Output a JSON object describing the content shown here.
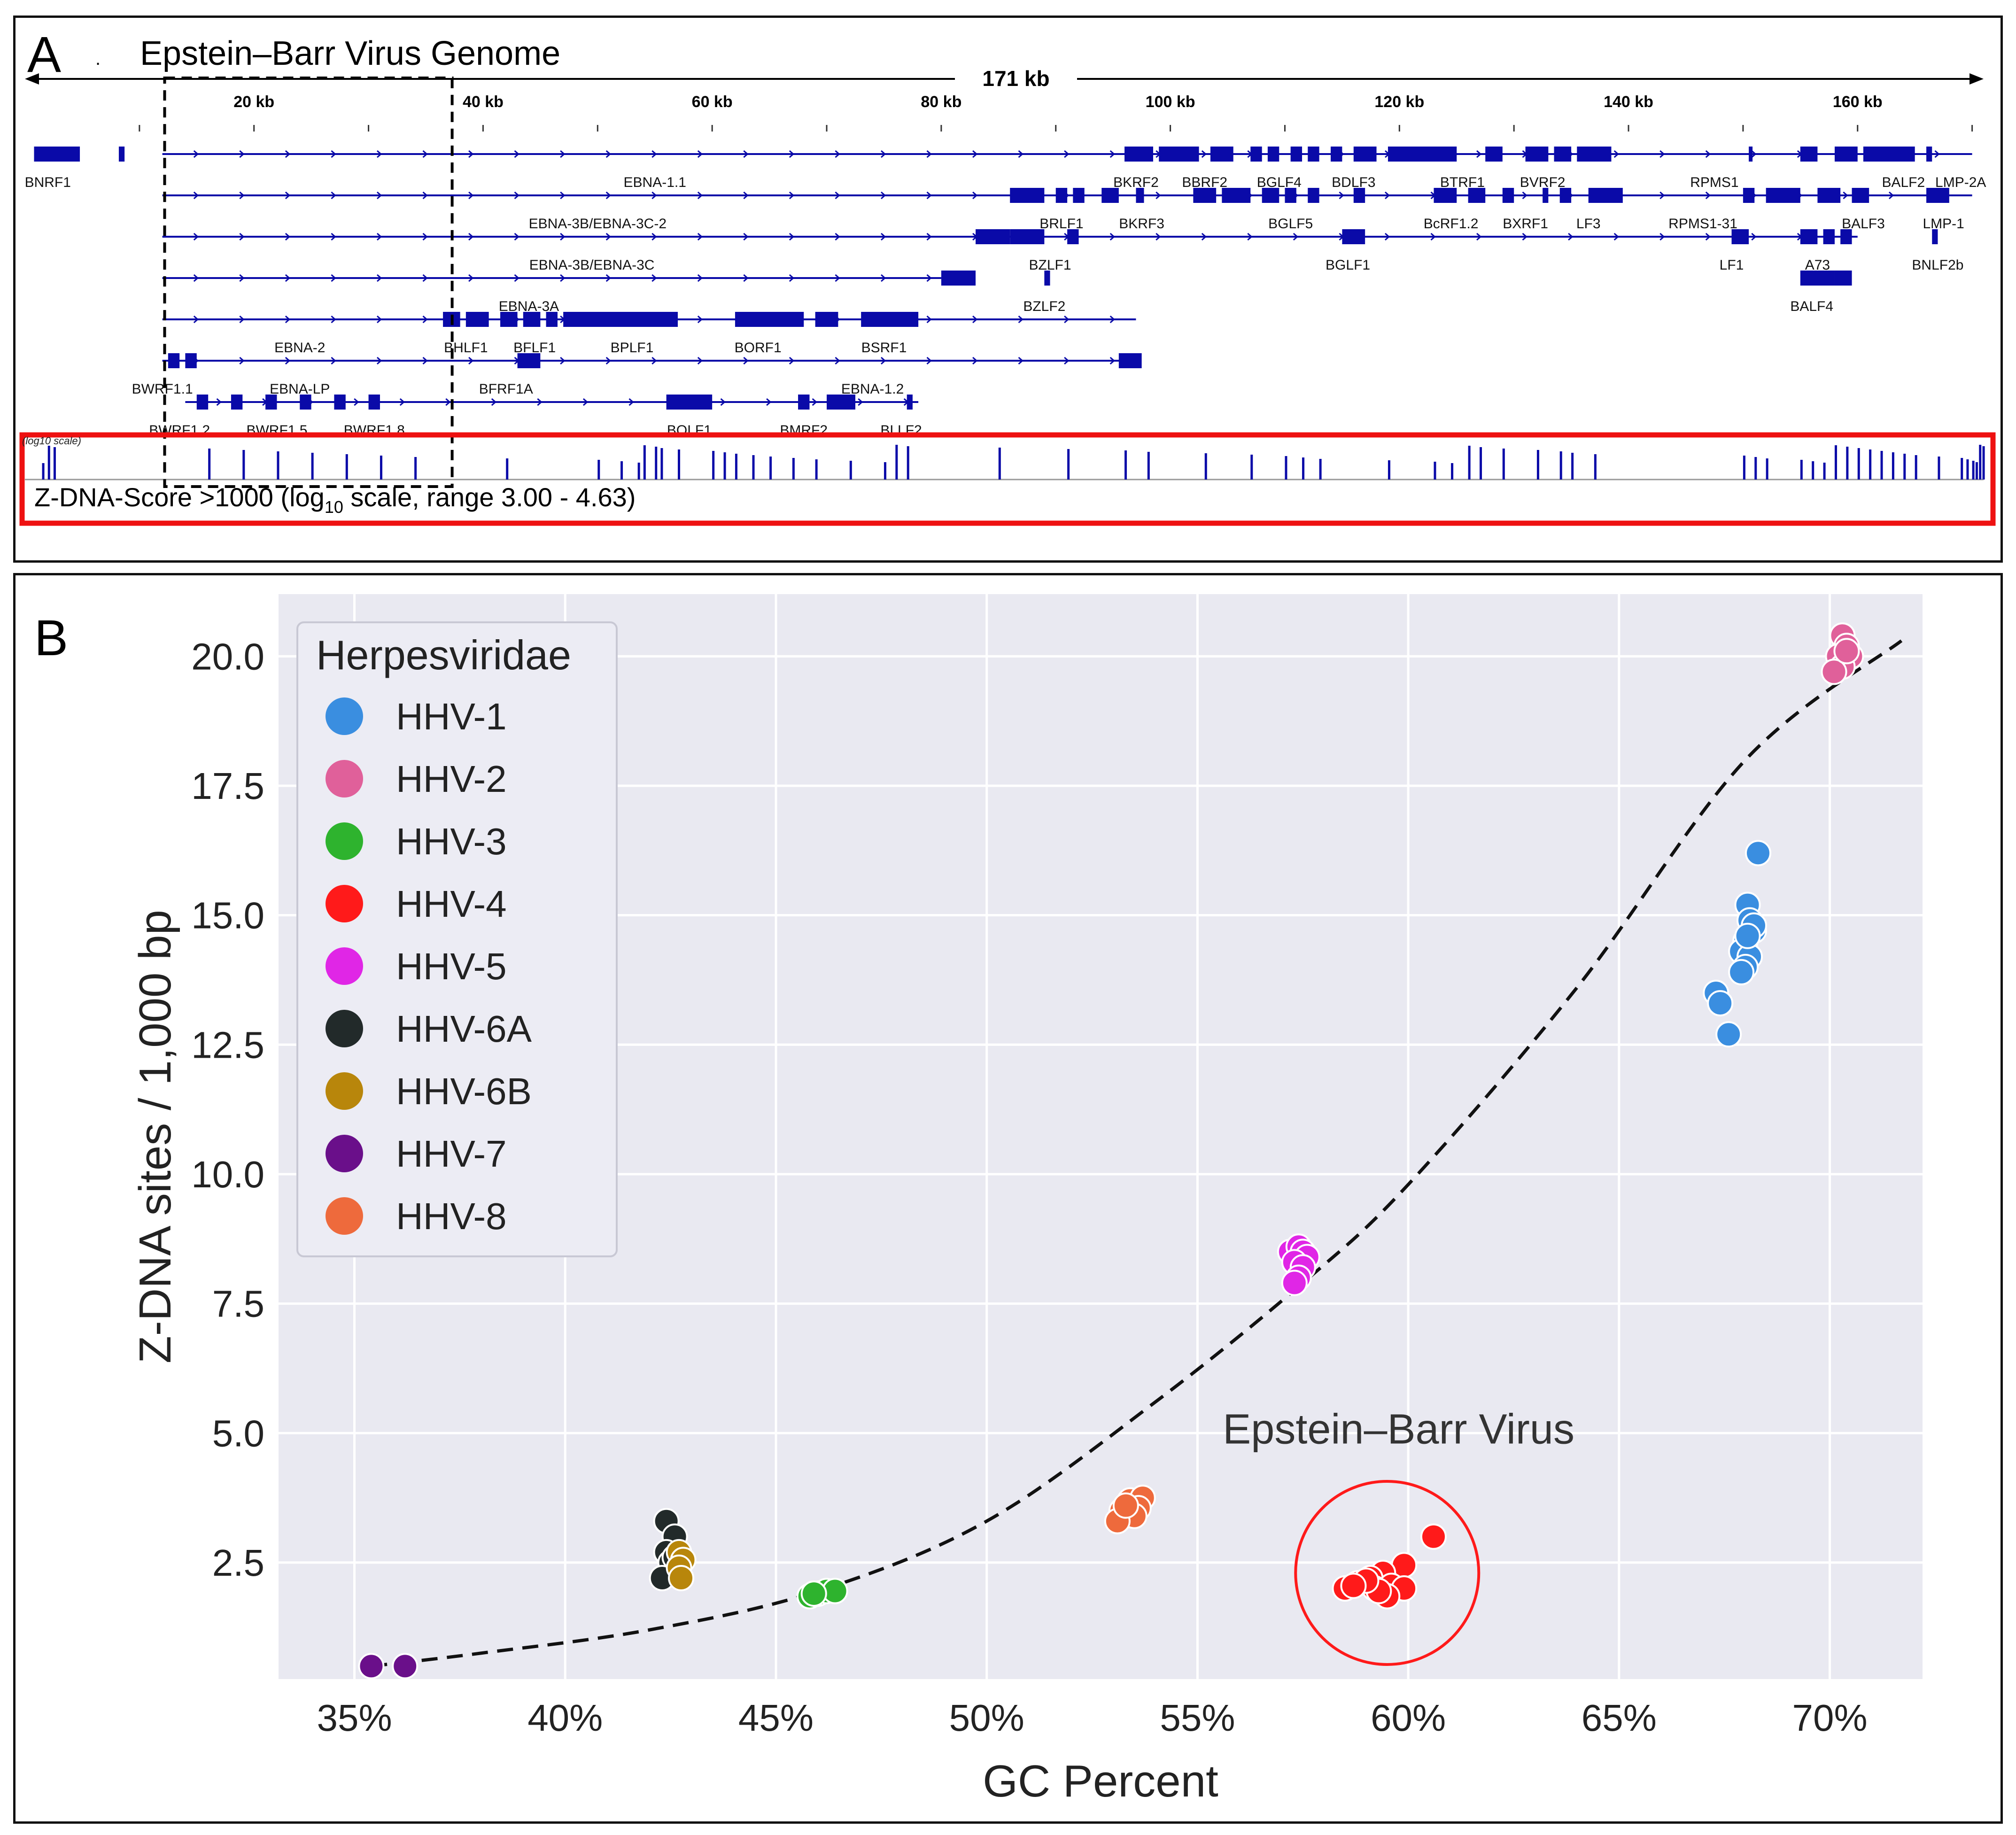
{
  "panel_a": {
    "letter": "A",
    "title": "Epstein–Barr Virus Genome",
    "dot": ".",
    "genome_length_label": "171 kb",
    "ruler_ticks": [
      {
        "kb": 20,
        "label": "20 kb"
      },
      {
        "kb": 40,
        "label": "40 kb"
      },
      {
        "kb": 60,
        "label": "60 kb"
      },
      {
        "kb": 80,
        "label": "80 kb"
      },
      {
        "kb": 100,
        "label": "100 kb"
      },
      {
        "kb": 120,
        "label": "120 kb"
      },
      {
        "kb": 140,
        "label": "140 kb"
      },
      {
        "kb": 160,
        "label": "160 kb"
      }
    ],
    "genes": [
      {
        "name": "BNRF1",
        "kb": 2,
        "row": 0
      },
      {
        "name": "EBNA-1.1",
        "kb": 55,
        "row": 0
      },
      {
        "name": "BKRF2",
        "kb": 97,
        "row": 0
      },
      {
        "name": "BBRF2",
        "kb": 103,
        "row": 0
      },
      {
        "name": "BGLF4",
        "kb": 109.5,
        "row": 0
      },
      {
        "name": "BDLF3",
        "kb": 116,
        "row": 0
      },
      {
        "name": "BTRF1",
        "kb": 125.5,
        "row": 0
      },
      {
        "name": "BVRF2",
        "kb": 132.5,
        "row": 0
      },
      {
        "name": "RPMS1",
        "kb": 147.5,
        "row": 0
      },
      {
        "name": "BALF2",
        "kb": 164,
        "row": 0
      },
      {
        "name": "LMP-2A",
        "kb": 169,
        "row": 0
      },
      {
        "name": "EBNA-3B/EBNA-3C-2",
        "kb": 50,
        "row": 1
      },
      {
        "name": "BRLF1",
        "kb": 90.5,
        "row": 1
      },
      {
        "name": "BKRF3",
        "kb": 97.5,
        "row": 1
      },
      {
        "name": "BGLF5",
        "kb": 110.5,
        "row": 1
      },
      {
        "name": "BcRF1.2",
        "kb": 124.5,
        "row": 1
      },
      {
        "name": "BXRF1",
        "kb": 131,
        "row": 1
      },
      {
        "name": "LF3",
        "kb": 136.5,
        "row": 1
      },
      {
        "name": "RPMS1-31",
        "kb": 146.5,
        "row": 1
      },
      {
        "name": "BALF3",
        "kb": 160.5,
        "row": 1
      },
      {
        "name": "LMP-1",
        "kb": 167.5,
        "row": 1
      },
      {
        "name": "EBNA-3B/EBNA-3C",
        "kb": 49.5,
        "row": 2
      },
      {
        "name": "BZLF1",
        "kb": 89.5,
        "row": 2
      },
      {
        "name": "BGLF1",
        "kb": 115.5,
        "row": 2
      },
      {
        "name": "LF1",
        "kb": 149,
        "row": 2
      },
      {
        "name": "A73",
        "kb": 156.5,
        "row": 2
      },
      {
        "name": "BNLF2b",
        "kb": 167,
        "row": 2
      },
      {
        "name": "EBNA-3A",
        "kb": 44,
        "row": 3
      },
      {
        "name": "BZLF2",
        "kb": 89,
        "row": 3
      },
      {
        "name": "BALF4",
        "kb": 156,
        "row": 3
      },
      {
        "name": "EBNA-2",
        "kb": 24,
        "row": 4
      },
      {
        "name": "BHLF1",
        "kb": 38.5,
        "row": 4
      },
      {
        "name": "BFLF1",
        "kb": 44.5,
        "row": 4
      },
      {
        "name": "BPLF1",
        "kb": 53,
        "row": 4
      },
      {
        "name": "BORF1",
        "kb": 64,
        "row": 4
      },
      {
        "name": "BSRF1",
        "kb": 75,
        "row": 4
      },
      {
        "name": "BWRF1.1",
        "kb": 12,
        "row": 5
      },
      {
        "name": "EBNA-LP",
        "kb": 24,
        "row": 5
      },
      {
        "name": "BFRF1A",
        "kb": 42,
        "row": 5
      },
      {
        "name": "EBNA-1.2",
        "kb": 74,
        "row": 5
      },
      {
        "name": "BWRF1.2",
        "kb": 13.5,
        "row": 6
      },
      {
        "name": "BWRF1.5",
        "kb": 22,
        "row": 6
      },
      {
        "name": "BWRF1.8",
        "kb": 30.5,
        "row": 6
      },
      {
        "name": "BOLF1",
        "kb": 58,
        "row": 6
      },
      {
        "name": "BMRF2",
        "kb": 68,
        "row": 6
      },
      {
        "name": "BLLF2",
        "kb": 76.5,
        "row": 6
      }
    ],
    "zdna_track_label": "Z-DNA-Score >1000 (log",
    "zdna_track_sub": "10",
    "zdna_track_label_rest": " scale, range 3.00 - 4.63)",
    "zdna_track_corner": "(log10 scale)",
    "zdna_sites_kb": [
      1.5,
      2,
      2.5,
      16,
      19,
      22,
      25,
      28,
      31,
      34,
      42,
      50,
      52,
      53.5,
      54,
      55,
      55.5,
      57,
      60,
      61,
      62,
      63.5,
      65,
      67,
      69,
      72,
      75,
      76,
      77,
      85,
      91,
      96,
      98,
      103,
      107,
      110,
      111.5,
      113,
      119,
      123,
      124.5,
      126,
      127,
      129,
      132,
      134,
      135,
      137,
      150,
      151,
      152,
      155,
      156,
      157,
      158,
      159,
      160,
      161,
      162,
      163,
      164,
      165,
      167,
      169,
      169.5,
      170,
      170.3,
      170.6,
      170.9
    ]
  },
  "panel_b": {
    "letter": "B",
    "epstein_barr_annotation": "Epstein–Barr Virus",
    "chart_data": {
      "type": "scatter",
      "xlabel": "GC Percent",
      "ylabel": "Z-DNA sites / 1,000 bp",
      "xlim": [
        33.2,
        72.2
      ],
      "ylim": [
        0.25,
        21.2
      ],
      "x_ticks": [
        35,
        40,
        45,
        50,
        55,
        60,
        65,
        70
      ],
      "x_tick_labels": [
        "35%",
        "40%",
        "45%",
        "50%",
        "55%",
        "60%",
        "65%",
        "70%"
      ],
      "y_ticks": [
        2.5,
        5.0,
        7.5,
        10.0,
        12.5,
        15.0,
        17.5,
        20.0
      ],
      "y_tick_labels": [
        "2.5",
        "5.0",
        "7.5",
        "10.0",
        "12.5",
        "15.0",
        "17.5",
        "20.0"
      ],
      "grid": true,
      "legend_title": "Herpesviridae",
      "legend_position": "top-left",
      "trend_curve": {
        "style": "dashed",
        "color": "#111111",
        "points": [
          [
            35.4,
            0.5
          ],
          [
            38,
            0.75
          ],
          [
            42,
            1.2
          ],
          [
            46,
            1.95
          ],
          [
            50,
            3.3
          ],
          [
            54,
            5.6
          ],
          [
            57.5,
            7.9
          ],
          [
            60,
            9.8
          ],
          [
            64,
            13.6
          ],
          [
            68,
            18.0
          ],
          [
            71.7,
            20.3
          ]
        ]
      },
      "series": [
        {
          "name": "HHV-1",
          "color": "#3a8ee0",
          "points": [
            [
              68.3,
              16.2
            ],
            [
              68.05,
              15.2
            ],
            [
              68.1,
              14.9
            ],
            [
              68.2,
              14.7
            ],
            [
              68.0,
              14.5
            ],
            [
              67.9,
              14.3
            ],
            [
              68.1,
              14.2
            ],
            [
              68.0,
              14.0
            ],
            [
              67.9,
              13.9
            ],
            [
              68.2,
              14.8
            ],
            [
              68.05,
              14.6
            ],
            [
              67.3,
              13.5
            ],
            [
              67.4,
              13.3
            ],
            [
              67.6,
              12.7
            ]
          ]
        },
        {
          "name": "HHV-2",
          "color": "#e0609a",
          "points": [
            [
              70.3,
              20.4
            ],
            [
              70.4,
              20.2
            ],
            [
              70.2,
              20.0
            ],
            [
              70.5,
              20.0
            ],
            [
              70.3,
              19.8
            ],
            [
              70.1,
              19.7
            ],
            [
              70.4,
              20.1
            ]
          ]
        },
        {
          "name": "HHV-3",
          "color": "#2eb32e",
          "points": [
            [
              45.8,
              1.85
            ],
            [
              46.0,
              1.9
            ],
            [
              46.2,
              1.95
            ],
            [
              46.4,
              1.95
            ],
            [
              45.9,
              1.9
            ]
          ]
        },
        {
          "name": "HHV-4",
          "color": "#ff1a1a",
          "points": [
            [
              60.6,
              3.0
            ],
            [
              59.9,
              2.45
            ],
            [
              59.4,
              2.3
            ],
            [
              59.1,
              2.2
            ],
            [
              58.8,
              2.1
            ],
            [
              58.5,
              2.0
            ],
            [
              59.2,
              2.0
            ],
            [
              59.6,
              2.05
            ],
            [
              59.9,
              2.0
            ],
            [
              59.5,
              1.85
            ],
            [
              59.3,
              1.95
            ],
            [
              59.0,
              2.15
            ],
            [
              58.7,
              2.05
            ]
          ]
        },
        {
          "name": "HHV-5",
          "color": "#e026e6",
          "points": [
            [
              57.2,
              8.5
            ],
            [
              57.4,
              8.6
            ],
            [
              57.5,
              8.5
            ],
            [
              57.6,
              8.4
            ],
            [
              57.3,
              8.3
            ],
            [
              57.5,
              8.2
            ],
            [
              57.4,
              8.0
            ],
            [
              57.3,
              7.9
            ]
          ]
        },
        {
          "name": "HHV-6A",
          "color": "#222a2a",
          "points": [
            [
              42.4,
              3.3
            ],
            [
              42.6,
              3.0
            ],
            [
              42.4,
              2.7
            ],
            [
              42.5,
              2.5
            ],
            [
              42.3,
              2.2
            ],
            [
              42.6,
              2.6
            ]
          ]
        },
        {
          "name": "HHV-6B",
          "color": "#b8860b",
          "points": [
            [
              42.7,
              2.7
            ],
            [
              42.8,
              2.55
            ],
            [
              42.7,
              2.4
            ],
            [
              42.75,
              2.2
            ]
          ]
        },
        {
          "name": "HHV-7",
          "color": "#6a0f8a",
          "points": [
            [
              35.4,
              0.5
            ],
            [
              36.2,
              0.5
            ]
          ]
        },
        {
          "name": "HHV-8",
          "color": "#ee6a3c",
          "points": [
            [
              53.4,
              3.7
            ],
            [
              53.7,
              3.75
            ],
            [
              53.6,
              3.55
            ],
            [
              53.2,
              3.5
            ],
            [
              53.5,
              3.4
            ],
            [
              53.1,
              3.3
            ],
            [
              53.3,
              3.6
            ]
          ]
        }
      ],
      "highlight_circle": {
        "center": [
          59.5,
          2.3
        ],
        "color": "#ff1a1a",
        "label": "Epstein–Barr Virus"
      }
    }
  }
}
